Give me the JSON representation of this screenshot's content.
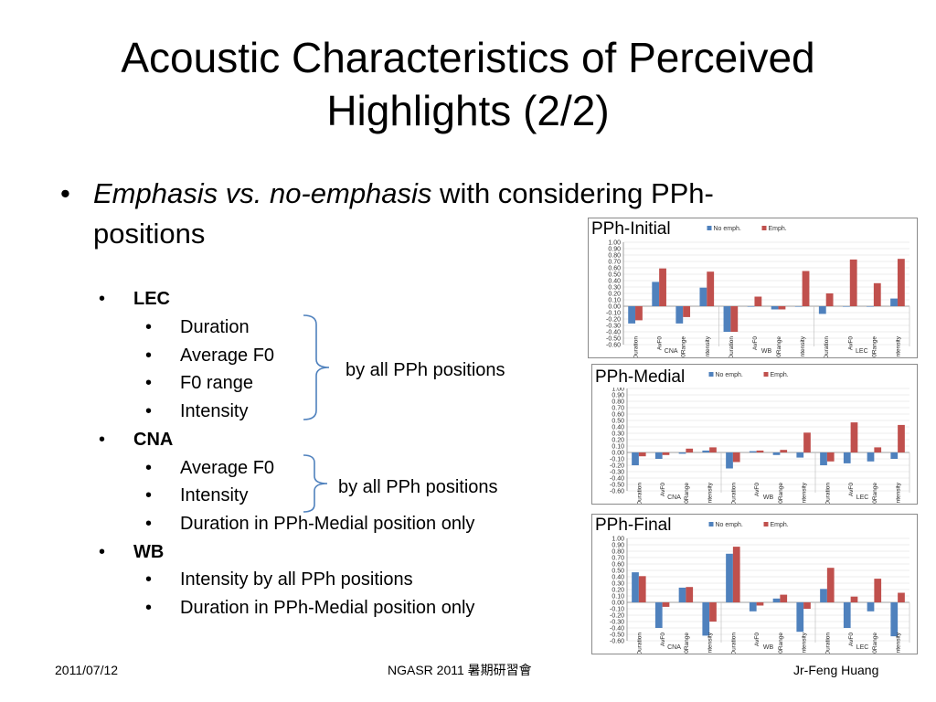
{
  "title": "Acoustic Characteristics of Perceived Highlights (2/2)",
  "main_bullet": {
    "italic_text": "Emphasis vs. no-emphasis",
    "text": " with considering PPh-positions"
  },
  "groups": [
    {
      "label": "LEC",
      "items": [
        "Duration",
        "Average F0",
        "F0 range",
        "Intensity"
      ]
    },
    {
      "label": "CNA",
      "items": [
        "Average F0",
        "Intensity",
        "Duration in PPh-Medial position only"
      ]
    },
    {
      "label": "WB",
      "items": [
        "Intensity by all PPh positions",
        "Duration in PPh-Medial position only"
      ]
    }
  ],
  "brace_notes": [
    "by all PPh positions",
    "by all PPh positions"
  ],
  "footer": {
    "date": "2011/07/12",
    "center": "NGASR 2011 暑期研習會",
    "author": "Jr-Feng Huang"
  },
  "colors": {
    "no_emph": "#4f81bd",
    "emph": "#c0504d",
    "brace": "#4f81bd"
  },
  "chart_data": [
    {
      "type": "bar",
      "title": "PPh-Initial",
      "categories": [
        "Duration",
        "AvF0",
        "F0Range",
        "Intensity",
        "Duration",
        "AvF0",
        "F0Range",
        "Intensity",
        "Duration",
        "AvF0",
        "F0Range",
        "Intensity"
      ],
      "groups": [
        "CNA",
        "WB",
        "LEC"
      ],
      "series": [
        {
          "name": "No emph.",
          "values": [
            -0.27,
            0.38,
            -0.27,
            0.29,
            -0.4,
            0.0,
            -0.05,
            0.0,
            -0.12,
            0.0,
            0.0,
            0.12
          ]
        },
        {
          "name": "Emph.",
          "values": [
            -0.22,
            0.59,
            -0.17,
            0.54,
            -0.4,
            0.15,
            -0.05,
            0.55,
            0.2,
            0.73,
            0.36,
            0.74
          ]
        }
      ],
      "ylim": [
        -0.6,
        1.0
      ],
      "yticks": [
        "1.00",
        "0.90",
        "0.80",
        "0.70",
        "0.60",
        "0.50",
        "0.40",
        "0.30",
        "0.20",
        "0.10",
        "0.00",
        "-0.10",
        "-0.20",
        "-0.30",
        "-0.40",
        "-0.50",
        "-0.60"
      ],
      "legend": "top"
    },
    {
      "type": "bar",
      "title": "PPh-Medial",
      "categories": [
        "Duration",
        "AvF0",
        "F0Range",
        "Intensity",
        "Duration",
        "AvF0",
        "F0Range",
        "Intensity",
        "Duration",
        "AvF0",
        "F0Range",
        "Intensity"
      ],
      "groups": [
        "CNA",
        "WB",
        "LEC"
      ],
      "series": [
        {
          "name": "No emph.",
          "values": [
            -0.2,
            -0.1,
            -0.02,
            0.03,
            -0.25,
            0.02,
            -0.04,
            -0.08,
            -0.2,
            -0.17,
            -0.14,
            -0.1
          ]
        },
        {
          "name": "Emph.",
          "values": [
            -0.06,
            -0.04,
            0.06,
            0.08,
            -0.15,
            0.03,
            0.04,
            0.31,
            -0.14,
            0.47,
            0.08,
            0.43
          ]
        }
      ],
      "ylim": [
        -0.6,
        1.0
      ],
      "yticks": [
        "1.00",
        "0.90",
        "0.80",
        "0.70",
        "0.60",
        "0.50",
        "0.40",
        "0.30",
        "0.20",
        "0.10",
        "0.00",
        "-0.10",
        "-0.20",
        "-0.30",
        "-0.40",
        "-0.50",
        "-0.60"
      ],
      "legend": "top"
    },
    {
      "type": "bar",
      "title": "PPh-Final",
      "categories": [
        "Duration",
        "AvF0",
        "F0Range",
        "Intensity",
        "Duration",
        "AvF0",
        "F0Range",
        "Intensity",
        "Duration",
        "AvF0",
        "F0Range",
        "Intensity"
      ],
      "groups": [
        "CNA",
        "WB",
        "LEC"
      ],
      "series": [
        {
          "name": "No emph.",
          "values": [
            0.47,
            -0.4,
            0.23,
            -0.52,
            0.76,
            -0.14,
            0.06,
            -0.46,
            0.21,
            -0.4,
            -0.14,
            -0.53
          ]
        },
        {
          "name": "Emph.",
          "values": [
            0.41,
            -0.07,
            0.24,
            -0.3,
            0.87,
            -0.05,
            0.12,
            -0.1,
            0.54,
            0.09,
            0.37,
            0.15
          ]
        }
      ],
      "ylim": [
        -0.6,
        1.0
      ],
      "yticks": [
        "1.00",
        "0.90",
        "0.80",
        "0.70",
        "0.60",
        "0.50",
        "0.40",
        "0.30",
        "0.20",
        "0.10",
        "0.00",
        "-0.10",
        "-0.20",
        "-0.30",
        "-0.40",
        "-0.50",
        "-0.60"
      ],
      "legend": "top"
    }
  ]
}
